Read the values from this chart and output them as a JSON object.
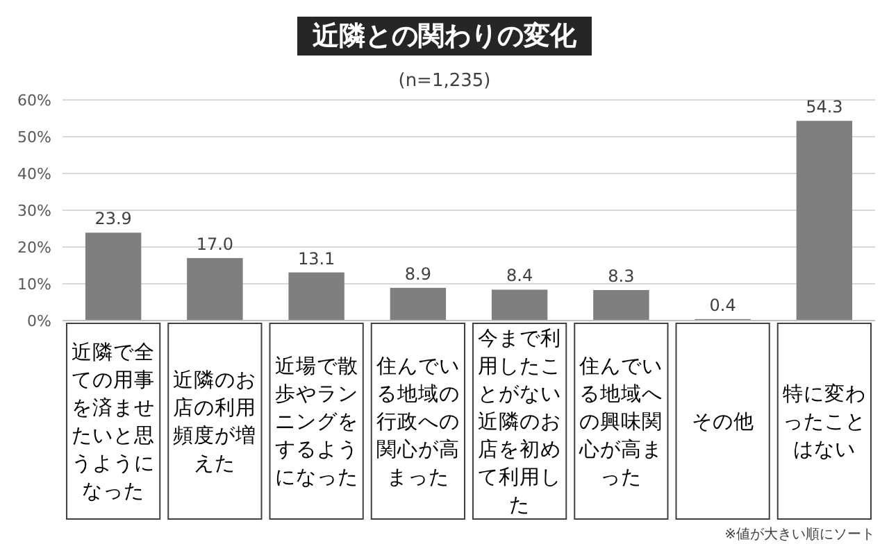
{
  "chart_data": {
    "type": "bar",
    "title": "近隣との関わりの変化",
    "subtitle": "(n=1,235)",
    "categories": [
      "近隣で全ての用事を済ませたいと思うようになった",
      "近隣のお店の利用頻度が増えた",
      "近場で散歩やランニングをするようになった",
      "住んでいる地域の行政への関心が高まった",
      "今まで利用したことがない近隣のお店を初めて利用した",
      "住んでいる地域への興味関心が高まった",
      "その他",
      "特に変わったことはない"
    ],
    "values": [
      23.9,
      17.0,
      13.1,
      8.9,
      8.4,
      8.3,
      0.4,
      54.3
    ],
    "value_labels": [
      "23.9",
      "17.0",
      "13.1",
      "8.9",
      "8.4",
      "8.3",
      "0.4",
      "54.3"
    ],
    "color": "#7f7f7f",
    "ylim": [
      0,
      60
    ],
    "yticks": [
      {
        "value": 0,
        "label": "0%"
      },
      {
        "value": 10,
        "label": "10%"
      },
      {
        "value": 20,
        "label": "20%"
      },
      {
        "value": 30,
        "label": "30%"
      },
      {
        "value": 40,
        "label": "40%"
      },
      {
        "value": 50,
        "label": "50%"
      },
      {
        "value": 60,
        "label": "60%"
      }
    ],
    "grid": "y",
    "annotations": [
      "※値が大きい順にソート"
    ]
  }
}
